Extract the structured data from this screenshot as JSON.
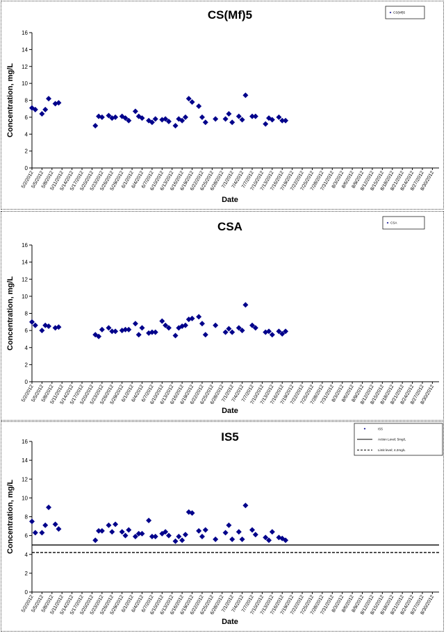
{
  "chart_data": [
    {
      "type": "scatter",
      "title": "CS(Mf)5",
      "xlabel": "Date",
      "ylabel": "Concentration, mg/L",
      "ylim": [
        0,
        16
      ],
      "yticks": [
        0,
        2,
        4,
        6,
        8,
        10,
        12,
        14,
        16
      ],
      "xlim": [
        "5/2/2012",
        "9/1/2012"
      ],
      "date_ticks": [
        "5/2/2012",
        "5/5/2012",
        "5/8/2012",
        "5/11/2012",
        "5/14/2012",
        "5/17/2012",
        "5/20/2012",
        "5/23/2012",
        "5/26/2012",
        "5/29/2012",
        "6/1/2012",
        "6/4/2012",
        "6/7/2012",
        "6/10/2012",
        "6/13/2012",
        "6/16/2012",
        "6/19/2012",
        "6/22/2012",
        "6/25/2012",
        "6/28/2012",
        "7/1/2012",
        "7/4/2012",
        "7/7/2012",
        "7/10/2012",
        "7/13/2012",
        "7/16/2012",
        "7/19/2012",
        "7/22/2012",
        "7/25/2012",
        "7/28/2012",
        "7/31/2012",
        "8/3/2012",
        "8/6/2012",
        "8/9/2012",
        "8/12/2012",
        "8/15/2012",
        "8/18/2012",
        "8/21/2012",
        "8/24/2012",
        "8/27/2012",
        "8/30/2012"
      ],
      "grid": false,
      "legend": "top-right",
      "series": [
        {
          "name": "CS(Mf)5",
          "color": "#00008B",
          "marker": "diamond",
          "points": [
            [
              "5/2/2012",
              7.1
            ],
            [
              "5/3/2012",
              6.9
            ],
            [
              "5/5/2012",
              6.4
            ],
            [
              "5/6/2012",
              6.9
            ],
            [
              "5/7/2012",
              8.2
            ],
            [
              "5/9/2012",
              7.6
            ],
            [
              "5/10/2012",
              7.7
            ],
            [
              "5/21/2012",
              5.0
            ],
            [
              "5/22/2012",
              6.1
            ],
            [
              "5/23/2012",
              6.0
            ],
            [
              "5/25/2012",
              6.2
            ],
            [
              "5/26/2012",
              5.9
            ],
            [
              "5/27/2012",
              6.0
            ],
            [
              "5/29/2012",
              6.1
            ],
            [
              "5/30/2012",
              5.9
            ],
            [
              "5/31/2012",
              5.6
            ],
            [
              "6/2/2012",
              6.7
            ],
            [
              "6/3/2012",
              6.1
            ],
            [
              "6/4/2012",
              5.9
            ],
            [
              "6/6/2012",
              5.6
            ],
            [
              "6/7/2012",
              5.4
            ],
            [
              "6/8/2012",
              5.8
            ],
            [
              "6/10/2012",
              5.7
            ],
            [
              "6/11/2012",
              5.8
            ],
            [
              "6/12/2012",
              5.5
            ],
            [
              "6/14/2012",
              5.0
            ],
            [
              "6/15/2012",
              5.8
            ],
            [
              "6/16/2012",
              5.6
            ],
            [
              "6/17/2012",
              6.0
            ],
            [
              "6/18/2012",
              8.2
            ],
            [
              "6/19/2012",
              7.8
            ],
            [
              "6/21/2012",
              7.3
            ],
            [
              "6/22/2012",
              6.0
            ],
            [
              "6/23/2012",
              5.4
            ],
            [
              "6/26/2012",
              5.8
            ],
            [
              "6/29/2012",
              5.8
            ],
            [
              "6/30/2012",
              6.4
            ],
            [
              "7/1/2012",
              5.4
            ],
            [
              "7/3/2012",
              6.1
            ],
            [
              "7/4/2012",
              5.7
            ],
            [
              "7/5/2012",
              8.6
            ],
            [
              "7/7/2012",
              6.1
            ],
            [
              "7/8/2012",
              6.1
            ],
            [
              "7/11/2012",
              5.2
            ],
            [
              "7/12/2012",
              5.9
            ],
            [
              "7/13/2012",
              5.7
            ],
            [
              "7/15/2012",
              6.0
            ],
            [
              "7/16/2012",
              5.6
            ],
            [
              "7/17/2012",
              5.6
            ]
          ]
        }
      ]
    },
    {
      "type": "scatter",
      "title": "CSA",
      "xlabel": "Date",
      "ylabel": "Concentration, mg/L",
      "ylim": [
        0,
        16
      ],
      "yticks": [
        0,
        2,
        4,
        6,
        8,
        10,
        12,
        14,
        16
      ],
      "xlim": [
        "5/2/2012",
        "9/1/2012"
      ],
      "date_ticks": [
        "5/2/2012",
        "5/5/2012",
        "5/8/2012",
        "5/11/2012",
        "5/14/2012",
        "5/17/2012",
        "5/20/2012",
        "5/23/2012",
        "5/26/2012",
        "5/29/2012",
        "6/1/2012",
        "6/4/2012",
        "6/7/2012",
        "6/10/2012",
        "6/13/2012",
        "6/16/2012",
        "6/19/2012",
        "6/22/2012",
        "6/25/2012",
        "6/28/2012",
        "7/1/2012",
        "7/4/2012",
        "7/7/2012",
        "7/10/2012",
        "7/13/2012",
        "7/16/2012",
        "7/19/2012",
        "7/22/2012",
        "7/25/2012",
        "7/28/2012",
        "7/31/2012",
        "8/3/2012",
        "8/6/2012",
        "8/9/2012",
        "8/12/2012",
        "8/15/2012",
        "8/18/2012",
        "8/21/2012",
        "8/24/2012",
        "8/27/2012",
        "8/30/2012"
      ],
      "grid": false,
      "legend": "top-right",
      "series": [
        {
          "name": "CSA",
          "color": "#00008B",
          "marker": "diamond",
          "points": [
            [
              "5/2/2012",
              7.0
            ],
            [
              "5/3/2012",
              6.6
            ],
            [
              "5/5/2012",
              6.0
            ],
            [
              "5/6/2012",
              6.6
            ],
            [
              "5/7/2012",
              6.5
            ],
            [
              "5/9/2012",
              6.3
            ],
            [
              "5/10/2012",
              6.4
            ],
            [
              "5/21/2012",
              5.5
            ],
            [
              "5/22/2012",
              5.3
            ],
            [
              "5/23/2012",
              6.1
            ],
            [
              "5/25/2012",
              6.3
            ],
            [
              "5/26/2012",
              5.9
            ],
            [
              "5/27/2012",
              5.9
            ],
            [
              "5/29/2012",
              6.0
            ],
            [
              "5/30/2012",
              6.1
            ],
            [
              "5/31/2012",
              6.1
            ],
            [
              "6/2/2012",
              6.8
            ],
            [
              "6/3/2012",
              5.5
            ],
            [
              "6/4/2012",
              6.3
            ],
            [
              "6/6/2012",
              5.7
            ],
            [
              "6/7/2012",
              5.8
            ],
            [
              "6/8/2012",
              5.8
            ],
            [
              "6/10/2012",
              7.1
            ],
            [
              "6/11/2012",
              6.6
            ],
            [
              "6/12/2012",
              6.3
            ],
            [
              "6/14/2012",
              5.4
            ],
            [
              "6/15/2012",
              6.3
            ],
            [
              "6/16/2012",
              6.5
            ],
            [
              "6/17/2012",
              6.6
            ],
            [
              "6/18/2012",
              7.3
            ],
            [
              "6/19/2012",
              7.4
            ],
            [
              "6/21/2012",
              7.6
            ],
            [
              "6/22/2012",
              6.8
            ],
            [
              "6/23/2012",
              5.5
            ],
            [
              "6/26/2012",
              6.6
            ],
            [
              "6/29/2012",
              5.8
            ],
            [
              "6/30/2012",
              6.2
            ],
            [
              "7/1/2012",
              5.8
            ],
            [
              "7/3/2012",
              6.3
            ],
            [
              "7/4/2012",
              6.0
            ],
            [
              "7/5/2012",
              9.0
            ],
            [
              "7/7/2012",
              6.6
            ],
            [
              "7/8/2012",
              6.3
            ],
            [
              "7/11/2012",
              5.8
            ],
            [
              "7/12/2012",
              5.9
            ],
            [
              "7/13/2012",
              5.5
            ],
            [
              "7/15/2012",
              5.9
            ],
            [
              "7/16/2012",
              5.6
            ],
            [
              "7/17/2012",
              5.9
            ]
          ]
        }
      ]
    },
    {
      "type": "scatter",
      "title": "IS5",
      "xlabel": "Date",
      "ylabel": "Concentration, mg/L",
      "ylim": [
        0,
        16
      ],
      "yticks": [
        0,
        2,
        4,
        6,
        8,
        10,
        12,
        14,
        16
      ],
      "xlim": [
        "5/2/2012",
        "9/1/2012"
      ],
      "date_ticks": [
        "5/2/2012",
        "5/5/2012",
        "5/8/2012",
        "5/11/2012",
        "5/14/2012",
        "5/17/2012",
        "5/20/2012",
        "5/23/2012",
        "5/26/2012",
        "5/29/2012",
        "6/1/2012",
        "6/4/2012",
        "6/7/2012",
        "6/10/2012",
        "6/13/2012",
        "6/16/2012",
        "6/19/2012",
        "6/22/2012",
        "6/25/2012",
        "6/28/2012",
        "7/1/2012",
        "7/4/2012",
        "7/7/2012",
        "7/10/2012",
        "7/13/2012",
        "7/16/2012",
        "7/19/2012",
        "7/22/2012",
        "7/25/2012",
        "7/28/2012",
        "7/31/2012",
        "8/3/2012",
        "8/6/2012",
        "8/9/2012",
        "8/12/2012",
        "8/15/2012",
        "8/18/2012",
        "8/21/2012",
        "8/24/2012",
        "8/27/2012",
        "8/30/2012"
      ],
      "grid": false,
      "legend": "top-right",
      "series": [
        {
          "name": "IS5",
          "color": "#00008B",
          "marker": "diamond",
          "points": [
            [
              "5/2/2012",
              7.5
            ],
            [
              "5/3/2012",
              6.3
            ],
            [
              "5/5/2012",
              6.3
            ],
            [
              "5/6/2012",
              7.1
            ],
            [
              "5/7/2012",
              9.0
            ],
            [
              "5/9/2012",
              7.2
            ],
            [
              "5/10/2012",
              6.7
            ],
            [
              "5/21/2012",
              5.5
            ],
            [
              "5/22/2012",
              6.5
            ],
            [
              "5/23/2012",
              6.5
            ],
            [
              "5/25/2012",
              7.1
            ],
            [
              "5/26/2012",
              6.4
            ],
            [
              "5/27/2012",
              7.2
            ],
            [
              "5/29/2012",
              6.4
            ],
            [
              "5/30/2012",
              6.0
            ],
            [
              "5/31/2012",
              6.6
            ],
            [
              "6/2/2012",
              5.9
            ],
            [
              "6/3/2012",
              6.2
            ],
            [
              "6/4/2012",
              6.2
            ],
            [
              "6/6/2012",
              7.6
            ],
            [
              "6/7/2012",
              5.9
            ],
            [
              "6/8/2012",
              5.9
            ],
            [
              "6/10/2012",
              6.2
            ],
            [
              "6/11/2012",
              6.4
            ],
            [
              "6/12/2012",
              6.0
            ],
            [
              "6/14/2012",
              5.4
            ],
            [
              "6/15/2012",
              5.9
            ],
            [
              "6/16/2012",
              5.5
            ],
            [
              "6/17/2012",
              6.1
            ],
            [
              "6/18/2012",
              8.5
            ],
            [
              "6/19/2012",
              8.4
            ],
            [
              "6/21/2012",
              6.5
            ],
            [
              "6/22/2012",
              5.9
            ],
            [
              "6/23/2012",
              6.6
            ],
            [
              "6/26/2012",
              5.6
            ],
            [
              "6/29/2012",
              6.3
            ],
            [
              "6/30/2012",
              7.1
            ],
            [
              "7/1/2012",
              5.6
            ],
            [
              "7/3/2012",
              6.4
            ],
            [
              "7/4/2012",
              5.6
            ],
            [
              "7/5/2012",
              9.2
            ],
            [
              "7/7/2012",
              6.6
            ],
            [
              "7/8/2012",
              6.1
            ],
            [
              "7/11/2012",
              5.8
            ],
            [
              "7/12/2012",
              5.5
            ],
            [
              "7/13/2012",
              6.4
            ],
            [
              "7/15/2012",
              5.8
            ],
            [
              "7/16/2012",
              5.7
            ],
            [
              "7/17/2012",
              5.5
            ]
          ]
        },
        {
          "name": "Action Level; 5mg/L",
          "type": "line",
          "style": "solid",
          "color": "#000000",
          "value": 5
        },
        {
          "name": "Limit level; 4.2mg/L",
          "type": "line",
          "style": "dashed",
          "color": "#000000",
          "value": 4.2
        }
      ]
    }
  ]
}
